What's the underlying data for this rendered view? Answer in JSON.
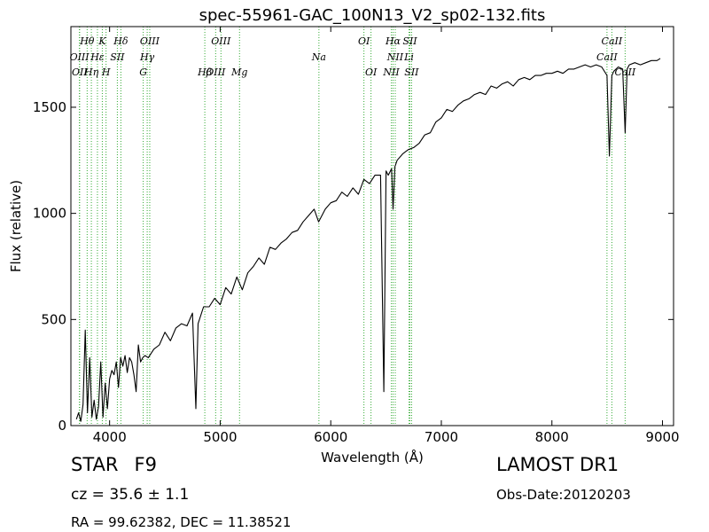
{
  "chart_data": {
    "type": "line",
    "title": "spec-55961-GAC_100N13_V2_sp02-132.fits",
    "xlabel": "Wavelength (Å)",
    "ylabel": "Flux (relative)",
    "xlim": [
      3650,
      9100
    ],
    "ylim": [
      0,
      1880
    ],
    "xticks": [
      4000,
      5000,
      6000,
      7000,
      8000,
      9000
    ],
    "yticks": [
      0,
      500,
      1000,
      1500
    ],
    "grid": false,
    "legend": "none",
    "colors": {
      "spectrum": "#000000",
      "lines": "#33aa33"
    },
    "series": [
      {
        "x": [
          3700,
          3720,
          3740,
          3760,
          3780,
          3800,
          3820,
          3840,
          3860,
          3880,
          3900,
          3920,
          3940,
          3960,
          3980,
          4000,
          4020,
          4040,
          4060,
          4080,
          4100,
          4120,
          4140,
          4160,
          4180,
          4200,
          4220,
          4240,
          4260,
          4280,
          4300,
          4320,
          4350,
          4400,
          4450,
          4500,
          4550,
          4600,
          4650,
          4700,
          4750,
          4780,
          4800,
          4850,
          4900,
          4950,
          5000,
          5050,
          5100,
          5150,
          5200,
          5250,
          5300,
          5350,
          5400,
          5450,
          5500,
          5550,
          5600,
          5650,
          5700,
          5750,
          5800,
          5850,
          5890,
          5950,
          6000,
          6050,
          6100,
          6150,
          6200,
          6250,
          6300,
          6350,
          6400,
          6450,
          6480,
          6500,
          6520,
          6550,
          6563,
          6580,
          6600,
          6650,
          6700,
          6750,
          6800,
          6850,
          6900,
          6950,
          7000,
          7050,
          7100,
          7150,
          7200,
          7250,
          7300,
          7350,
          7400,
          7450,
          7500,
          7550,
          7600,
          7650,
          7700,
          7750,
          7800,
          7850,
          7900,
          7950,
          8000,
          8050,
          8100,
          8150,
          8200,
          8250,
          8300,
          8350,
          8400,
          8450,
          8498,
          8520,
          8542,
          8560,
          8600,
          8640,
          8662,
          8680,
          8700,
          8750,
          8800,
          8850,
          8900,
          8950,
          8980
        ],
        "y": [
          30,
          60,
          20,
          100,
          450,
          60,
          320,
          40,
          120,
          30,
          90,
          300,
          40,
          200,
          80,
          220,
          260,
          240,
          300,
          180,
          320,
          280,
          330,
          250,
          320,
          300,
          240,
          160,
          380,
          300,
          320,
          330,
          320,
          360,
          380,
          440,
          400,
          460,
          480,
          470,
          530,
          80,
          480,
          560,
          560,
          600,
          570,
          650,
          620,
          700,
          640,
          720,
          750,
          790,
          760,
          840,
          830,
          860,
          880,
          910,
          920,
          960,
          990,
          1020,
          960,
          1020,
          1050,
          1060,
          1100,
          1080,
          1120,
          1090,
          1160,
          1140,
          1180,
          1180,
          160,
          1200,
          1180,
          1210,
          1020,
          1220,
          1250,
          1280,
          1300,
          1310,
          1330,
          1370,
          1380,
          1430,
          1450,
          1490,
          1480,
          1510,
          1530,
          1540,
          1560,
          1570,
          1560,
          1600,
          1590,
          1610,
          1620,
          1600,
          1630,
          1640,
          1630,
          1650,
          1650,
          1660,
          1660,
          1670,
          1660,
          1680,
          1680,
          1690,
          1700,
          1690,
          1700,
          1690,
          1650,
          1270,
          1650,
          1670,
          1690,
          1680,
          1380,
          1680,
          1700,
          1710,
          1700,
          1710,
          1720,
          1720,
          1730
        ]
      }
    ],
    "line_groups": [
      {
        "row": 1,
        "items": [
          {
            "label": "Hθ",
            "x": 3797
          },
          {
            "label": "K",
            "x": 3934
          },
          {
            "label": "Hδ",
            "x": 4102
          },
          {
            "label": "OIII",
            "x": 4363
          },
          {
            "label": "OIII",
            "x": 5007
          },
          {
            "label": "OI",
            "x": 6300
          },
          {
            "label": "Hα",
            "x": 6563
          },
          {
            "label": "SII",
            "x": 6716
          },
          {
            "label": "CaII",
            "x": 8542
          }
        ]
      },
      {
        "row": 2,
        "items": [
          {
            "label": "OIII",
            "x": 3727
          },
          {
            "label": "Hε",
            "x": 3890
          },
          {
            "label": "SII",
            "x": 4070
          },
          {
            "label": "Hγ",
            "x": 4340
          },
          {
            "label": "Na",
            "x": 5893
          },
          {
            "label": "NII",
            "x": 6583
          },
          {
            "label": "Li",
            "x": 6708
          },
          {
            "label": "CaII",
            "x": 8498
          }
        ]
      },
      {
        "row": 3,
        "items": [
          {
            "label": "OII",
            "x": 3729
          },
          {
            "label": "Hη",
            "x": 3835
          },
          {
            "label": "H",
            "x": 3968
          },
          {
            "label": "G",
            "x": 4304
          },
          {
            "label": "Hβ",
            "x": 4861
          },
          {
            "label": "OIII",
            "x": 4959
          },
          {
            "label": "Mg",
            "x": 5175
          },
          {
            "label": "OI",
            "x": 6364
          },
          {
            "label": "NII",
            "x": 6548
          },
          {
            "label": "SII",
            "x": 6731
          },
          {
            "label": "CaII",
            "x": 8662
          }
        ]
      }
    ]
  },
  "info": {
    "class": "STAR",
    "subclass": "F9",
    "cz": "cz = 35.6 ± 1.1",
    "survey": "LAMOST DR1",
    "obs_date": "Obs-Date:20120203",
    "radec": "RA = 99.62382, DEC = 11.38521"
  }
}
